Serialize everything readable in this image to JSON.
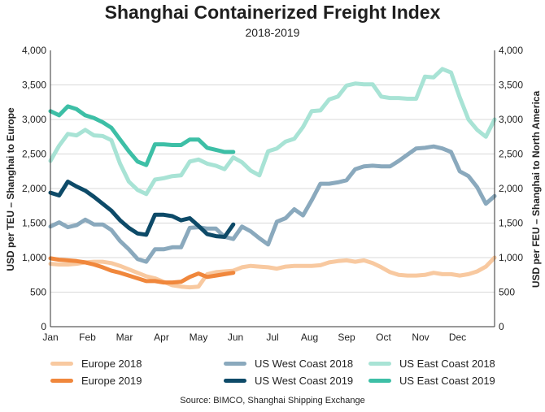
{
  "chart_data": {
    "type": "line",
    "title": "Shanghai Containerized Freight Index",
    "subtitle": "2018-2019",
    "source": "Source: BIMCO, Shanghai Shipping Exchange",
    "ylabel_left": "USD per TEU – Shanghai to Europe",
    "ylabel_right": "USD per FEU – Shanghai to North America",
    "ylim": [
      0,
      4000
    ],
    "yticks": [
      "0",
      "500",
      "1,000",
      "1,500",
      "2,000",
      "2,500",
      "3,000",
      "3,500",
      "4,000"
    ],
    "months": [
      "Jan",
      "Feb",
      "Mar",
      "Apr",
      "May",
      "Jun",
      "Jul",
      "Aug",
      "Sep",
      "Oct",
      "Nov",
      "Dec"
    ],
    "x_unit": "week of year",
    "xlim": [
      1,
      52
    ],
    "grid": "horizontal",
    "legend_position": "bottom",
    "series": [
      {
        "name": "Europe 2018",
        "color": "#f8c9a0",
        "x": [
          1,
          2,
          3,
          4,
          5,
          6,
          7,
          8,
          9,
          10,
          11,
          12,
          13,
          14,
          15,
          16,
          17,
          18,
          19,
          20,
          21,
          22,
          23,
          24,
          25,
          26,
          27,
          28,
          29,
          30,
          31,
          32,
          33,
          34,
          35,
          36,
          37,
          38,
          39,
          40,
          41,
          42,
          43,
          44,
          45,
          46,
          47,
          48,
          49,
          50,
          51,
          52
        ],
        "y": [
          910,
          900,
          900,
          910,
          930,
          940,
          940,
          920,
          880,
          830,
          780,
          730,
          700,
          650,
          600,
          580,
          570,
          580,
          760,
          790,
          800,
          810,
          860,
          880,
          870,
          860,
          840,
          870,
          880,
          880,
          880,
          890,
          930,
          950,
          960,
          940,
          960,
          920,
          860,
          790,
          750,
          740,
          740,
          750,
          780,
          760,
          760,
          740,
          760,
          800,
          870,
          1000
        ]
      },
      {
        "name": "Europe 2019",
        "color": "#f0873c",
        "x": [
          1,
          2,
          3,
          4,
          5,
          6,
          7,
          8,
          9,
          10,
          11,
          12,
          13,
          14,
          15,
          16,
          17,
          18,
          19,
          20,
          21,
          22
        ],
        "y": [
          990,
          970,
          960,
          950,
          930,
          900,
          860,
          810,
          780,
          740,
          700,
          660,
          660,
          640,
          640,
          650,
          720,
          770,
          720,
          740,
          760,
          780
        ]
      },
      {
        "name": "US West Coast 2018",
        "color": "#8aa9bd",
        "x": [
          1,
          2,
          3,
          4,
          5,
          6,
          7,
          8,
          9,
          10,
          11,
          12,
          13,
          14,
          15,
          16,
          17,
          18,
          19,
          20,
          21,
          22,
          23,
          24,
          25,
          26,
          27,
          28,
          29,
          30,
          31,
          32,
          33,
          34,
          35,
          36,
          37,
          38,
          39,
          40,
          41,
          42,
          43,
          44,
          45,
          46,
          47,
          48,
          49,
          50,
          51,
          52
        ],
        "y": [
          1450,
          1510,
          1440,
          1470,
          1550,
          1480,
          1480,
          1400,
          1240,
          1120,
          980,
          940,
          1120,
          1120,
          1150,
          1150,
          1430,
          1440,
          1420,
          1420,
          1300,
          1270,
          1450,
          1380,
          1280,
          1190,
          1520,
          1570,
          1700,
          1610,
          1830,
          2070,
          2070,
          2090,
          2120,
          2280,
          2320,
          2330,
          2320,
          2320,
          2400,
          2490,
          2580,
          2590,
          2610,
          2580,
          2530,
          2250,
          2180,
          2020,
          1780,
          1890
        ]
      },
      {
        "name": "US West Coast 2019",
        "color": "#0d4a68",
        "x": [
          1,
          2,
          3,
          4,
          5,
          6,
          7,
          8,
          9,
          10,
          11,
          12,
          13,
          14,
          15,
          16,
          17,
          18,
          19,
          20,
          21,
          22
        ],
        "y": [
          1940,
          1900,
          2100,
          2030,
          1970,
          1880,
          1780,
          1680,
          1540,
          1430,
          1350,
          1330,
          1620,
          1620,
          1600,
          1540,
          1570,
          1460,
          1340,
          1310,
          1300,
          1480
        ]
      },
      {
        "name": "US East Coast 2018",
        "color": "#a8e3d5",
        "x": [
          1,
          2,
          3,
          4,
          5,
          6,
          7,
          8,
          9,
          10,
          11,
          12,
          13,
          14,
          15,
          16,
          17,
          18,
          19,
          20,
          21,
          22,
          23,
          24,
          25,
          26,
          27,
          28,
          29,
          30,
          31,
          32,
          33,
          34,
          35,
          36,
          37,
          38,
          39,
          40,
          41,
          42,
          43,
          44,
          45,
          46,
          47,
          48,
          49,
          50,
          51,
          52
        ],
        "y": [
          2400,
          2620,
          2790,
          2770,
          2850,
          2770,
          2760,
          2700,
          2360,
          2100,
          1980,
          1920,
          2130,
          2150,
          2180,
          2190,
          2390,
          2420,
          2360,
          2330,
          2280,
          2450,
          2380,
          2260,
          2190,
          2540,
          2580,
          2680,
          2720,
          2890,
          3120,
          3130,
          3290,
          3330,
          3490,
          3520,
          3510,
          3510,
          3330,
          3310,
          3310,
          3300,
          3300,
          3620,
          3610,
          3730,
          3680,
          3320,
          3000,
          2850,
          2750,
          3000
        ]
      },
      {
        "name": "US East Coast 2019",
        "color": "#3dbfa6",
        "x": [
          1,
          2,
          3,
          4,
          5,
          6,
          7,
          8,
          9,
          10,
          11,
          12,
          13,
          14,
          15,
          16,
          17,
          18,
          19,
          20,
          21,
          22
        ],
        "y": [
          3120,
          3060,
          3190,
          3150,
          3060,
          3020,
          2960,
          2880,
          2710,
          2540,
          2390,
          2340,
          2640,
          2640,
          2630,
          2630,
          2710,
          2710,
          2590,
          2560,
          2530,
          2530
        ]
      }
    ]
  }
}
